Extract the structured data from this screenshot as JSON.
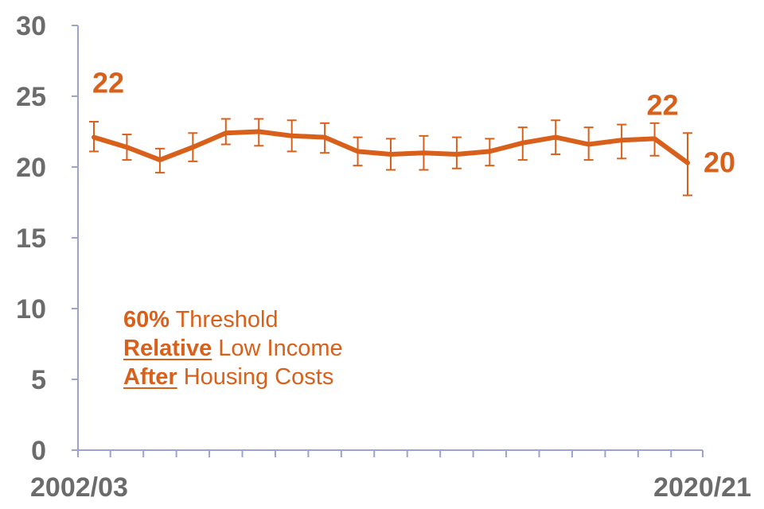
{
  "colors": {
    "series": "#d9601a",
    "axis": "#9da3cf",
    "text": "#6b6b6b"
  },
  "legend": {
    "line1_bold": "60%",
    "line1_rest": " Threshold",
    "line2_bold": "Relative",
    "line2_rest": " Low Income",
    "line3_bold": "After",
    "line3_rest": " Housing Costs"
  },
  "chart_data": {
    "type": "line",
    "title": "",
    "xlabel": "",
    "ylabel": "",
    "ylim": [
      0,
      30
    ],
    "yticks": [
      0,
      5,
      10,
      15,
      20,
      25,
      30
    ],
    "x_start_label": "2002/03",
    "x_end_label": "2020/21",
    "grid": false,
    "series": [
      {
        "name": "",
        "values": [
          22.1,
          21.4,
          20.5,
          21.4,
          22.4,
          22.5,
          22.2,
          22.1,
          21.1,
          20.9,
          21.0,
          20.9,
          21.1,
          21.7,
          22.1,
          21.6,
          21.9,
          22.0,
          20.3
        ],
        "error_low": [
          21.1,
          20.5,
          19.6,
          20.4,
          21.6,
          21.5,
          21.1,
          21.0,
          20.1,
          19.8,
          19.8,
          19.9,
          20.1,
          20.5,
          20.9,
          20.5,
          20.6,
          20.8,
          18.0
        ],
        "error_high": [
          23.2,
          22.3,
          21.3,
          22.4,
          23.4,
          23.4,
          23.3,
          23.1,
          22.1,
          22.0,
          22.2,
          22.1,
          22.0,
          22.8,
          23.3,
          22.8,
          23.0,
          23.1,
          22.4
        ]
      }
    ],
    "data_labels": [
      {
        "index": 0,
        "text": "22"
      },
      {
        "index": 17,
        "text": "22"
      },
      {
        "index": 18,
        "text": "20"
      }
    ]
  }
}
